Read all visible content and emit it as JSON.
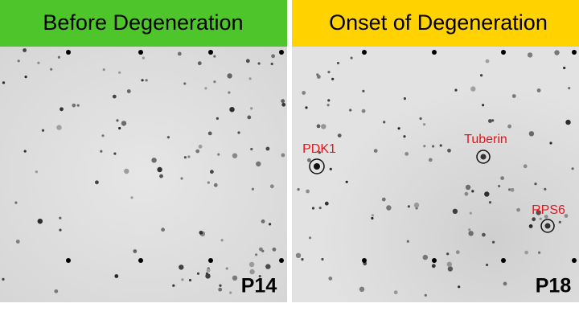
{
  "panels": [
    {
      "header": "Before Degeneration",
      "label": "P14"
    },
    {
      "header": "Onset of Degeneration",
      "label": "P18",
      "annotations": [
        "PDK1",
        "Tuberin",
        "RPS6"
      ]
    }
  ]
}
